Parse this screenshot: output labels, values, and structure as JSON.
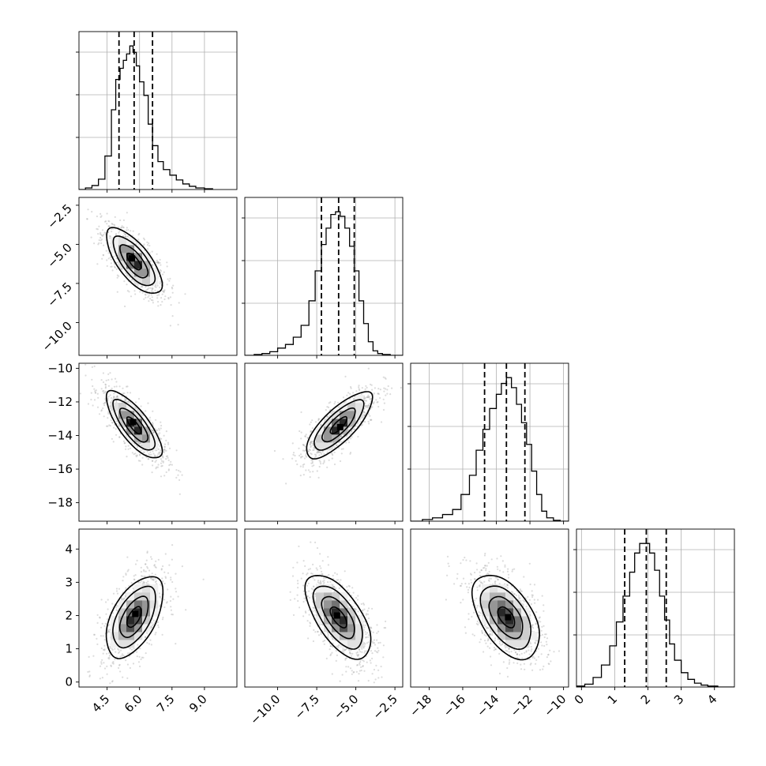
{
  "chart_data": {
    "type": "corner",
    "title": "",
    "parameters": [
      {
        "index": 0,
        "label": "",
        "range": [
          3.2,
          10.5
        ],
        "ticks": [
          4.5,
          6.0,
          7.5,
          9.0
        ],
        "tick_labels": [
          "4.5",
          "6.0",
          "7.5",
          "9.0"
        ],
        "quantiles": [
          5.05,
          5.75,
          6.6
        ]
      },
      {
        "index": 1,
        "label": "",
        "range": [
          -12.1,
          -2.0
        ],
        "ticks": [
          -10.0,
          -7.5,
          -5.0,
          -2.5
        ],
        "tick_labels": [
          "−10.0",
          "−7.5",
          "−5.0",
          "−2.5"
        ],
        "quantiles": [
          -7.2,
          -6.1,
          -5.1
        ]
      },
      {
        "index": 2,
        "label": "",
        "range": [
          -19.1,
          -9.7
        ],
        "ticks": [
          -18,
          -16,
          -14,
          -12,
          -10
        ],
        "tick_labels": [
          "−18",
          "−16",
          "−14",
          "−12",
          "−10"
        ],
        "quantiles": [
          -14.7,
          -13.4,
          -12.3
        ]
      },
      {
        "index": 3,
        "label": "",
        "range": [
          -0.15,
          4.6
        ],
        "ticks": [
          0,
          1,
          2,
          3,
          4
        ],
        "tick_labels": [
          "0",
          "1",
          "2",
          "3",
          "4"
        ],
        "quantiles": [
          1.3,
          1.95,
          2.55
        ]
      }
    ],
    "marginal_histograms": [
      {
        "param": 0,
        "bins": [
          3.2,
          3.5,
          3.8,
          4.1,
          4.4,
          4.7,
          4.9,
          5.1,
          5.25,
          5.4,
          5.55,
          5.7,
          5.85,
          6.0,
          6.2,
          6.4,
          6.6,
          6.85,
          7.1,
          7.4,
          7.7,
          8.0,
          8.3,
          8.6,
          9.0,
          9.4
        ],
        "counts": [
          0,
          2,
          5,
          13,
          42,
          100,
          138,
          152,
          162,
          170,
          180,
          172,
          155,
          135,
          118,
          82,
          55,
          35,
          25,
          18,
          12,
          7,
          4,
          2,
          1
        ]
      },
      {
        "param": 1,
        "bins": [
          -12.1,
          -11.5,
          -11.0,
          -10.5,
          -10.0,
          -9.5,
          -9.0,
          -8.5,
          -8.0,
          -7.6,
          -7.2,
          -6.9,
          -6.6,
          -6.3,
          -6.0,
          -5.7,
          -5.4,
          -5.1,
          -4.8,
          -4.5,
          -4.2,
          -3.9,
          -3.6,
          -3.3,
          -2.8,
          -2.0
        ],
        "counts": [
          0,
          1,
          2,
          4,
          8,
          12,
          20,
          33,
          60,
          93,
          122,
          140,
          155,
          158,
          153,
          140,
          120,
          93,
          60,
          35,
          15,
          5,
          2,
          1,
          0
        ]
      },
      {
        "param": 2,
        "bins": [
          -19.1,
          -18.4,
          -17.8,
          -17.2,
          -16.6,
          -16.1,
          -15.6,
          -15.2,
          -14.8,
          -14.4,
          -14.0,
          -13.7,
          -13.4,
          -13.1,
          -12.8,
          -12.5,
          -12.2,
          -11.9,
          -11.6,
          -11.3,
          -11.0,
          -10.6,
          -10.2,
          -9.7
        ],
        "counts": [
          0,
          2,
          4,
          8,
          14,
          32,
          55,
          85,
          110,
          135,
          152,
          165,
          172,
          160,
          140,
          118,
          92,
          60,
          32,
          12,
          4,
          1,
          0
        ]
      },
      {
        "param": 3,
        "bins": [
          -0.15,
          0.1,
          0.35,
          0.6,
          0.85,
          1.05,
          1.25,
          1.45,
          1.6,
          1.75,
          1.9,
          2.05,
          2.2,
          2.35,
          2.5,
          2.65,
          2.8,
          3.0,
          3.2,
          3.4,
          3.6,
          3.8,
          4.1,
          4.6
        ],
        "counts": [
          1,
          3,
          10,
          23,
          43,
          68,
          95,
          120,
          140,
          150,
          150,
          140,
          122,
          95,
          70,
          45,
          28,
          15,
          8,
          4,
          2,
          1,
          0
        ]
      }
    ],
    "joint_distributions": [
      {
        "x_param": 0,
        "y_param": 1,
        "mean": [
          5.75,
          -6.1
        ],
        "sigma": [
          0.65,
          1.05
        ],
        "correlation": -0.72,
        "peak": [
          5.65,
          -5.9
        ]
      },
      {
        "x_param": 0,
        "y_param": 2,
        "mean": [
          5.75,
          -13.4
        ],
        "sigma": [
          0.65,
          1.0
        ],
        "correlation": -0.78,
        "peak": [
          5.7,
          -13.2
        ]
      },
      {
        "x_param": 0,
        "y_param": 3,
        "mean": [
          5.75,
          1.95
        ],
        "sigma": [
          0.65,
          0.62
        ],
        "correlation": 0.55,
        "peak": [
          5.8,
          2.05
        ]
      },
      {
        "x_param": 1,
        "y_param": 2,
        "mean": [
          -6.1,
          -13.4
        ],
        "sigma": [
          1.05,
          1.0
        ],
        "correlation": 0.78,
        "peak": [
          -6.0,
          -13.5
        ]
      },
      {
        "x_param": 1,
        "y_param": 3,
        "mean": [
          -6.1,
          1.95
        ],
        "sigma": [
          1.05,
          0.62
        ],
        "correlation": -0.62,
        "peak": [
          -6.2,
          2.0
        ]
      },
      {
        "x_param": 2,
        "y_param": 3,
        "mean": [
          -13.4,
          1.95
        ],
        "sigma": [
          1.0,
          0.62
        ],
        "correlation": -0.5,
        "peak": [
          -13.3,
          1.95
        ]
      }
    ],
    "contour_levels_sigma": [
      0.5,
      1.0,
      1.5,
      2.0
    ],
    "quantiles": [
      0.16,
      0.5,
      0.84
    ],
    "grid": true,
    "colors": {
      "line": "#000000",
      "grid": "#b0b0b0",
      "sample": "#9a9a9a",
      "density": "#000000"
    }
  }
}
